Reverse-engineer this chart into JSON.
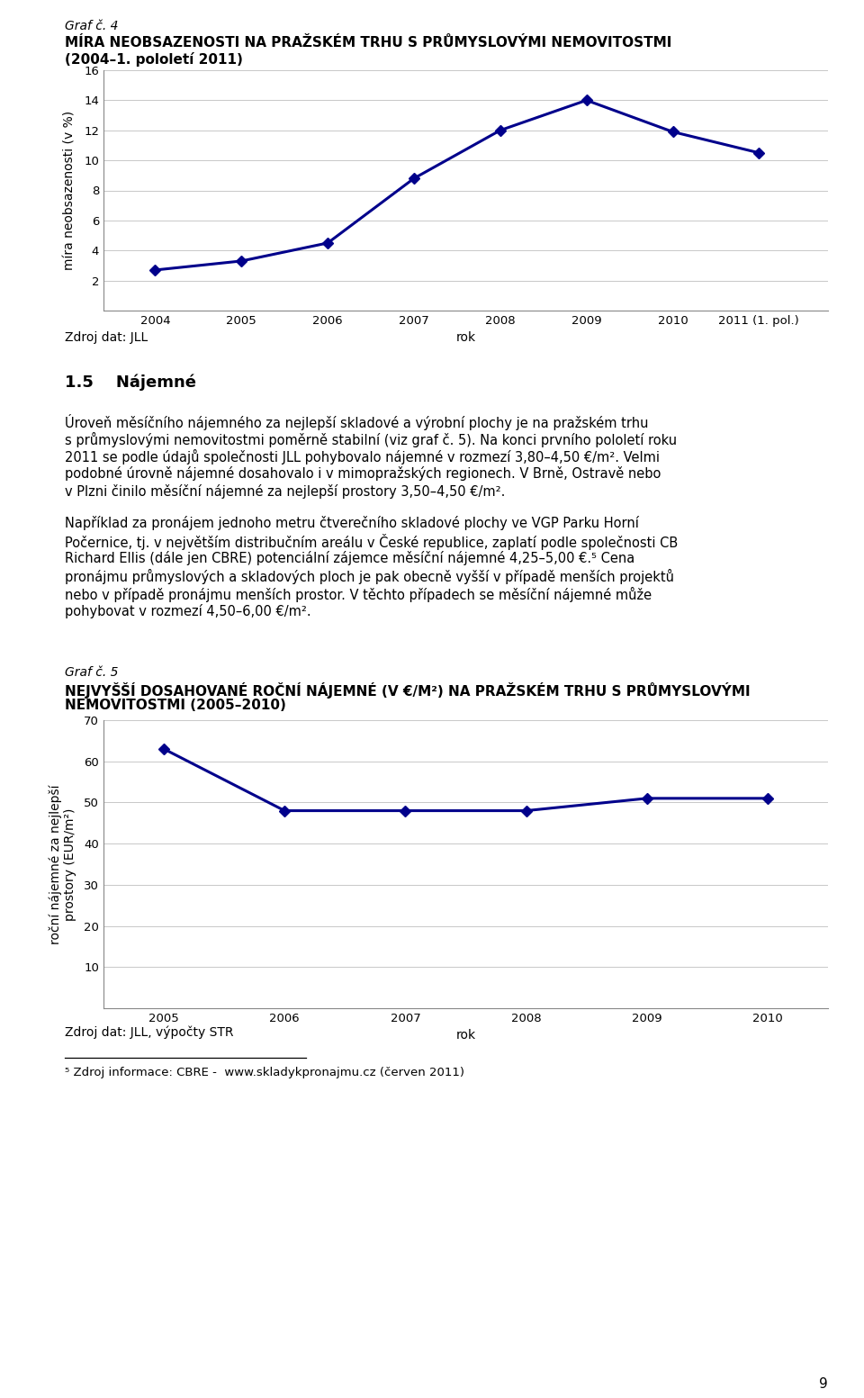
{
  "chart1": {
    "title_line1": "MÍRA NEOBSAZENOSTI NA PRAŽSKÉM TRHU S PRŮMYSLOVÝMI NEMOVITOSTMI",
    "title_line2": "(2004–1. pololetí 2011)",
    "graf_label": "Graf č. 4",
    "x_values": [
      2004,
      2005,
      2006,
      2007,
      2008,
      2009,
      2010,
      2011
    ],
    "y_values": [
      2.7,
      3.3,
      4.5,
      8.8,
      12.0,
      14.0,
      11.9,
      10.5
    ],
    "x_tick_labels": [
      "2004",
      "2005",
      "2006",
      "2007",
      "2008",
      "2009",
      "2010",
      "2011 (1. pol.)"
    ],
    "ylabel": "míra neobsazenosti (v %)",
    "xlabel": "rok",
    "ylim": [
      0,
      16
    ],
    "yticks": [
      0,
      2,
      4,
      6,
      8,
      10,
      12,
      14,
      16
    ],
    "source": "Zdroj dat: JLL",
    "line_color": "#00008B",
    "marker": "D",
    "marker_size": 6,
    "line_width": 2.2
  },
  "chart2": {
    "title_line1": "NEJVYŠŠÍ DOSAHOVANÉ ROČNÍ NÁJEMNÉ (V €/M²) NA PRAŽSKÉM TRHU S PRŮMYSLOVÝMI",
    "title_line2": "NEMOVITOSTMI (2005–2010)",
    "graf_label": "Graf č. 5",
    "x_values": [
      2005,
      2006,
      2007,
      2008,
      2009,
      2010
    ],
    "y_values": [
      63,
      48,
      48,
      48,
      51,
      51
    ],
    "x_tick_labels": [
      "2005",
      "2006",
      "2007",
      "2008",
      "2009",
      "2010"
    ],
    "ylabel": "roční nájemné za nejlepší\nprostory (EUR/m²)",
    "xlabel": "rok",
    "ylim": [
      0,
      70
    ],
    "yticks": [
      0,
      10,
      20,
      30,
      40,
      50,
      60,
      70
    ],
    "source": "Zdroj dat: JLL, výpočty STR",
    "line_color": "#00008B",
    "marker": "D",
    "marker_size": 6,
    "line_width": 2.2
  },
  "section_heading": "1.5    Nájemné",
  "paragraph1_lines": [
    "Úroveň měsíčního nájemného za nejlepší skladové a výrobní plochy je na pražském trhu",
    "s průmyslovými nemovitostmi poměrně stabilní (viz graf č. 5). Na konci prvního pololetí roku",
    "2011 se podle údajů společnosti JLL pohybovalo nájemné v rozmezí 3,80–4,50 €/m². Velmi",
    "podobné úrovně nájemné dosahovalo i v mimopražských regionech. V Brně, Ostravě nebo",
    "v Plzni činilo měsíční nájemné za nejlepší prostory 3,50–4,50 €/m²."
  ],
  "paragraph2_lines": [
    "Například za pronájem jednoho metru čtverečního skladové plochy ve VGP Parku Horní",
    "Počernice, tj. v největším distribučním areálu v České republice, zaplatí podle společnosti CB",
    "Richard Ellis (dále jen CBRE) potenciální zájemce měsíční nájemné 4,25–5,00 €.⁵ Cena",
    "pronájmu průmyslových a skladových ploch je pak obecně vyšší v případě menších projektů",
    "nebo v případě pronájmu menších prostor. V těchto případech se měsíční nájemné může",
    "pohybovat v rozmezí 4,50–6,00 €/m²."
  ],
  "footnote_line": "⁵ Zdroj informace: CBRE -  www.skladykpronajmu.cz (červen 2011)",
  "page_number": "9",
  "background_color": "#FFFFFF",
  "grid_color": "#C8C8C8"
}
